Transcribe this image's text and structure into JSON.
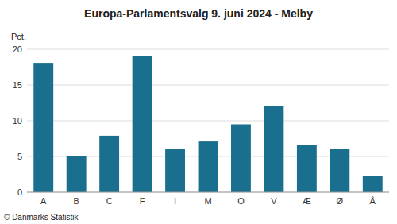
{
  "chart_data": {
    "type": "bar",
    "title": "Europa-Parlamentsvalg 9. juni 2024 - Melby",
    "categories": [
      "A",
      "B",
      "C",
      "F",
      "I",
      "M",
      "O",
      "V",
      "Æ",
      "Ø",
      "Å"
    ],
    "values": [
      18.1,
      5.1,
      7.9,
      19.1,
      6.0,
      7.1,
      9.5,
      12.0,
      6.6,
      6.0,
      2.3
    ],
    "color": "#1a6e8e",
    "ylabel": "Pct.",
    "ylim": [
      0,
      20
    ],
    "yticks": [
      0,
      5,
      10,
      15,
      20
    ],
    "grid": true,
    "annotations": [
      "© Danmarks Statistik"
    ]
  }
}
